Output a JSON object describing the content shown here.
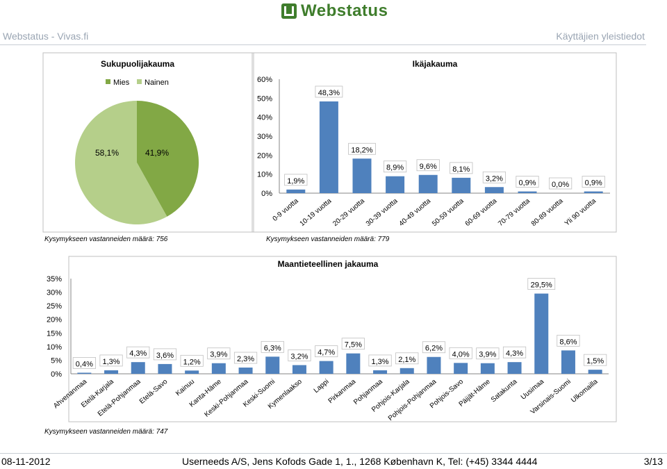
{
  "header": {
    "logo_text": "Webstatus",
    "left": "Webstatus - Vivas.fi",
    "right": "Käyttäjien yleistiedot"
  },
  "footer": {
    "date": "08-11-2012",
    "company": "Userneeds A/S, Jens Kofods Gade 1, 1., 1268 København K, Tel: (+45) 3344 4444",
    "page": "3/13"
  },
  "colors": {
    "mies": "#82a845",
    "nainen": "#b5cf8a",
    "bar": "#4f81bd"
  },
  "chart_data": [
    {
      "type": "pie",
      "title": "Sukupuolijakauma",
      "categories": [
        "Mies",
        "Nainen"
      ],
      "values": [
        41.9,
        58.1
      ],
      "labels": [
        "41,9%",
        "58,1%"
      ],
      "legend": "top",
      "note": "Kysymykseen vastanneiden määrä: 756"
    },
    {
      "type": "bar",
      "title": "Ikäjakauma",
      "categories": [
        "0-9 vuotta",
        "10-19 vuotta",
        "20-29 vuotta",
        "30-39 vuotta",
        "40-49 vuotta",
        "50-59 vuotta",
        "60-69 vuotta",
        "70-79 vuotta",
        "80-89 vuotta",
        "Yli 90 vuotta"
      ],
      "values": [
        1.9,
        48.3,
        18.2,
        8.9,
        9.6,
        8.1,
        3.2,
        0.9,
        0.0,
        0.9
      ],
      "labels": [
        "1,9%",
        "48,3%",
        "18,2%",
        "8,9%",
        "9,6%",
        "8,1%",
        "3,2%",
        "0,9%",
        "0,0%",
        "0,9%"
      ],
      "yticks": [
        "0%",
        "10%",
        "20%",
        "30%",
        "40%",
        "50%",
        "60%"
      ],
      "ylim": [
        0,
        60
      ],
      "note": "Kysymykseen vastanneiden määrä: 779"
    },
    {
      "type": "bar",
      "title": "Maantieteellinen jakauma",
      "categories": [
        "Ahvenanmaa",
        "Etelä-Karjala",
        "Etelä-Pohjanmaa",
        "Etelä-Savo",
        "Kainuu",
        "Kanta-Häme",
        "Keski-Pohjanmaa",
        "Keski-Suomi",
        "Kymenlaakso",
        "Lappi",
        "Pirkanmaa",
        "Pohjanmaa",
        "Pohjois-Karjala",
        "Pohjois-Pohjanmaa",
        "Pohjois-Savo",
        "Päijät-Häme",
        "Satakunta",
        "Uusimaa",
        "Varsinais-Suomi",
        "Ulkomailla"
      ],
      "values": [
        0.4,
        1.3,
        4.3,
        3.6,
        1.2,
        3.9,
        2.3,
        6.3,
        3.2,
        4.7,
        7.5,
        1.3,
        2.1,
        6.2,
        4.0,
        3.9,
        4.3,
        29.5,
        8.6,
        1.5
      ],
      "labels": [
        "0,4%",
        "1,3%",
        "4,3%",
        "3,6%",
        "1,2%",
        "3,9%",
        "2,3%",
        "6,3%",
        "3,2%",
        "4,7%",
        "7,5%",
        "1,3%",
        "2,1%",
        "6,2%",
        "4,0%",
        "3,9%",
        "4,3%",
        "29,5%",
        "8,6%",
        "1,5%"
      ],
      "yticks": [
        "0%",
        "5%",
        "10%",
        "15%",
        "20%",
        "25%",
        "30%",
        "35%"
      ],
      "ylim": [
        0,
        35
      ],
      "note": "Kysymykseen vastanneiden määrä: 747"
    }
  ]
}
